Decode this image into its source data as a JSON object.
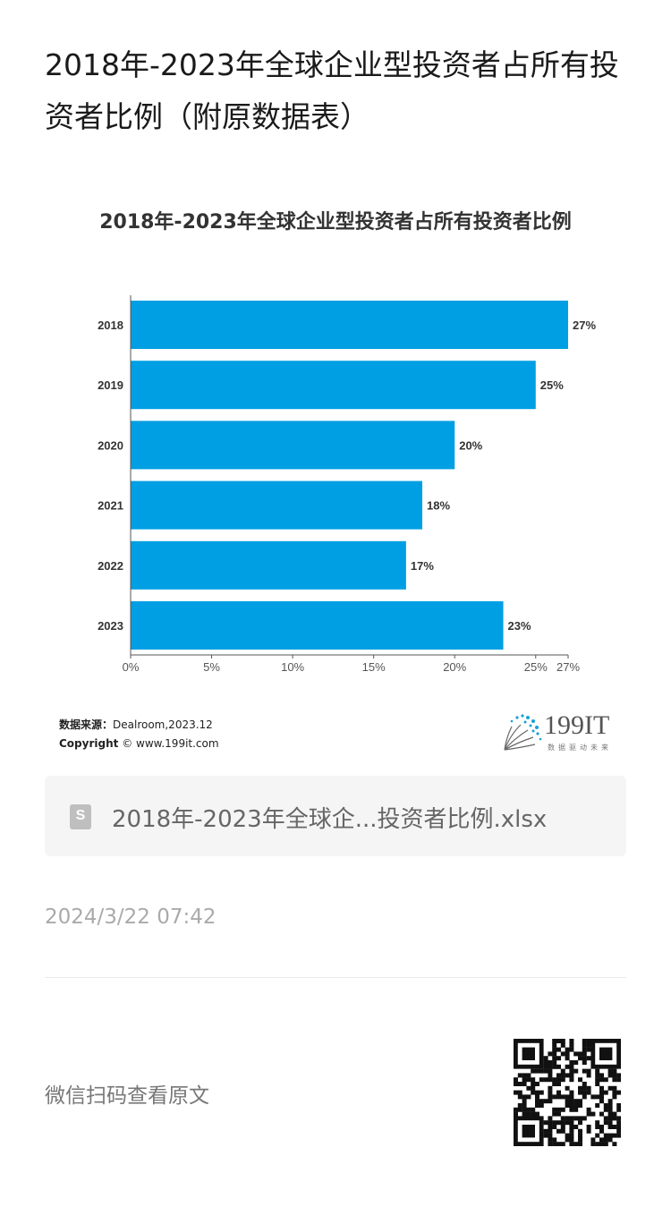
{
  "page": {
    "title": "2018年-2023年全球企业型投资者占所有投资者比例（附原数据表）",
    "date": "2024/3/22 07:42",
    "scan_text": "微信扫码查看原文"
  },
  "attachment": {
    "icon": "spreadsheet-file-icon",
    "icon_letter": "S",
    "filename": "2018年-2023年全球企...投资者比例.xlsx"
  },
  "source": {
    "label": "数据来源：",
    "value": "Dealroom,2023.12",
    "copyright_label": "Copyright",
    "copyright_value": "© www.199it.com"
  },
  "logo": {
    "text": "199IT",
    "slogan": "数据驱动未来"
  },
  "chart_data": {
    "type": "bar",
    "orientation": "horizontal",
    "title": "2018年-2023年全球企业型投资者占所有投资者比例",
    "categories": [
      "2018",
      "2019",
      "2020",
      "2021",
      "2022",
      "2023"
    ],
    "values": [
      27,
      25,
      20,
      18,
      17,
      23
    ],
    "value_labels": [
      "27%",
      "25%",
      "20%",
      "18%",
      "17%",
      "23%"
    ],
    "xlim": [
      0,
      27
    ],
    "x_ticks": [
      0,
      5,
      10,
      15,
      20,
      25,
      27
    ],
    "x_tick_labels": [
      "0%",
      "5%",
      "10%",
      "15%",
      "20%",
      "25%",
      "27%"
    ],
    "grid": false,
    "bar_color": "#009fe3"
  }
}
